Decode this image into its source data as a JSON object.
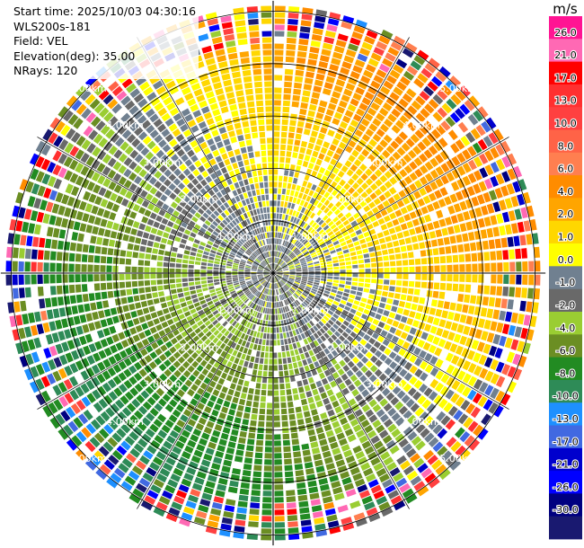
{
  "info": {
    "start_time": "Start time: 2025/10/03 04:30:16",
    "instrument": "WLS200s-181",
    "field": "Field: VEL",
    "elevation": "Elevation(deg): 35.00",
    "nrays": "NRays: 120"
  },
  "chart_data": {
    "type": "heatmap",
    "projection": "polar-ppi",
    "field": "VEL",
    "units": "m/s",
    "n_rays": 120,
    "elevation_deg": 35.0,
    "range_rings_km": [
      1.0,
      2.0,
      3.0,
      4.0,
      5.0
    ],
    "ring_labels": [
      "1.00km",
      "2.00km",
      "3.00km",
      "4.00km",
      "5.00km"
    ],
    "max_range_km": 5.2,
    "grid": true,
    "colorbar": {
      "title": "m/s",
      "tick_labels": [
        "26.0",
        "21.0",
        "17.0",
        "13.0",
        "10.0",
        "8.0",
        "6.0",
        "4.0",
        "2.0",
        "1.0",
        "0.0",
        "-1.0",
        "-2.0",
        "-4.0",
        "-6.0",
        "-8.0",
        "-10.0",
        "-13.0",
        "-17.0",
        "-21.0",
        "-26.0",
        "-30.0"
      ],
      "colors_top_to_bottom": [
        "#ff1493",
        "#ff69b4",
        "#ff0000",
        "#ff3030",
        "#ff4040",
        "#ff6347",
        "#ff7f50",
        "#ff8c00",
        "#ffa500",
        "#ffd700",
        "#ffff00",
        "#708090",
        "#696969",
        "#9acd32",
        "#6b8e23",
        "#228b22",
        "#2e8b57",
        "#1e90ff",
        "#4169e1",
        "#0000cd",
        "#0000ff",
        "#000080",
        "#191970"
      ]
    },
    "pattern": {
      "inner_near_zero_km": 1.8,
      "outer_noise_from_km": 4.3,
      "positive_sector": "north-east",
      "negative_sector": "south-west"
    }
  }
}
